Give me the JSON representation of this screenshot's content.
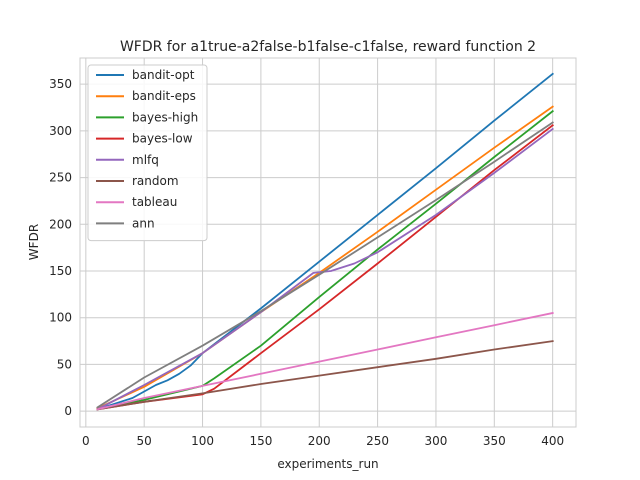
{
  "chart_data": {
    "type": "line",
    "title": "WFDR for a1true-a2false-b1false-c1false, reward function 2",
    "xlabel": "experiments_run",
    "ylabel": "WFDR",
    "xlim": [
      -5,
      420
    ],
    "ylim": [
      -17,
      378
    ],
    "xticks": [
      0,
      50,
      100,
      150,
      200,
      250,
      300,
      350,
      400
    ],
    "yticks": [
      0,
      50,
      100,
      150,
      200,
      250,
      300,
      350
    ],
    "grid": true,
    "legend_position": "top-left",
    "series": [
      {
        "name": "bandit-opt",
        "color": "#1f77b4",
        "x": [
          10,
          40,
          60,
          70,
          80,
          90,
          100,
          150,
          200,
          250,
          300,
          350,
          400
        ],
        "y": [
          2,
          14,
          28,
          33,
          40,
          49,
          62,
          110,
          160,
          210,
          260,
          311,
          361
        ]
      },
      {
        "name": "bandit-eps",
        "color": "#ff7f0e",
        "x": [
          10,
          50,
          100,
          150,
          200,
          250,
          300,
          350,
          400
        ],
        "y": [
          3,
          26,
          62,
          106,
          148,
          192,
          237,
          282,
          326
        ]
      },
      {
        "name": "bayes-high",
        "color": "#2ca02c",
        "x": [
          10,
          50,
          100,
          110,
          150,
          200,
          250,
          300,
          350,
          400
        ],
        "y": [
          2,
          12,
          27,
          35,
          70,
          122,
          173,
          222,
          272,
          321
        ]
      },
      {
        "name": "bayes-low",
        "color": "#d62728",
        "x": [
          10,
          50,
          100,
          110,
          150,
          200,
          250,
          300,
          350,
          400
        ],
        "y": [
          2,
          10,
          18,
          24,
          62,
          109,
          158,
          208,
          258,
          306
        ]
      },
      {
        "name": "mlfq",
        "color": "#9467bd",
        "x": [
          10,
          50,
          100,
          150,
          195,
          210,
          230,
          250,
          300,
          350,
          400
        ],
        "y": [
          2,
          28,
          62,
          106,
          148,
          150,
          158,
          170,
          210,
          255,
          302
        ]
      },
      {
        "name": "random",
        "color": "#8c564b",
        "x": [
          10,
          50,
          100,
          150,
          200,
          250,
          300,
          350,
          400
        ],
        "y": [
          2,
          10,
          19,
          29,
          38,
          47,
          56,
          66,
          75
        ]
      },
      {
        "name": "tableau",
        "color": "#e377c2",
        "x": [
          10,
          50,
          100,
          150,
          200,
          250,
          300,
          350,
          400
        ],
        "y": [
          2,
          14,
          27,
          40,
          53,
          66,
          79,
          92,
          105
        ]
      },
      {
        "name": "ann",
        "color": "#7f7f7f",
        "x": [
          10,
          50,
          100,
          150,
          200,
          250,
          300,
          350,
          400
        ],
        "y": [
          4,
          36,
          70,
          107,
          146,
          186,
          226,
          267,
          309
        ]
      }
    ]
  }
}
